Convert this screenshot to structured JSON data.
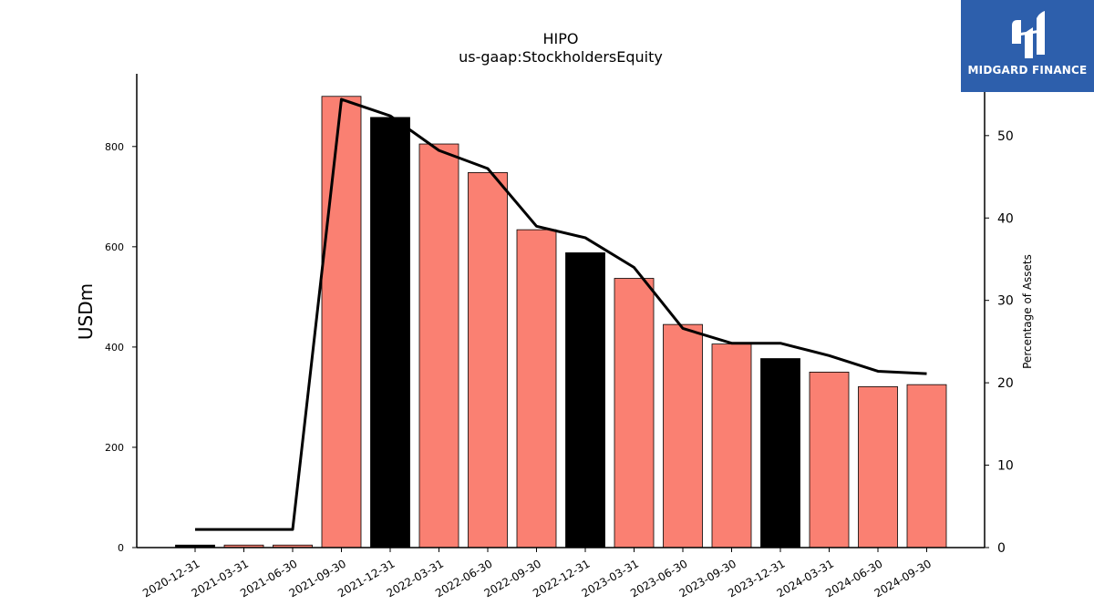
{
  "chart_data": {
    "type": "bar",
    "title": "HIPO",
    "subtitle": "us-gaap:StockholdersEquity",
    "ylabel": "USDm",
    "y2label": "Percentage of Assets",
    "ylim": [
      0,
      945
    ],
    "y2lim": [
      0,
      57.5
    ],
    "yticks": [
      0,
      200,
      400,
      600,
      800
    ],
    "y2ticks": [
      0,
      10,
      20,
      30,
      40,
      50
    ],
    "grid": false,
    "categories": [
      "2020-12-31",
      "2021-03-31",
      "2021-06-30",
      "2021-09-30",
      "2021-12-31",
      "2022-03-31",
      "2022-06-30",
      "2022-09-30",
      "2022-12-31",
      "2023-03-31",
      "2023-06-30",
      "2023-09-30",
      "2023-12-31",
      "2024-03-31",
      "2024-06-30",
      "2024-09-30"
    ],
    "series": [
      {
        "type": "bar",
        "axis": "left",
        "values": [
          5,
          5,
          5,
          900,
          858,
          805,
          748,
          634,
          588,
          537,
          445,
          406,
          377,
          350,
          321,
          325
        ],
        "colors": [
          "#000000",
          "#fa8072",
          "#fa8072",
          "#fa8072",
          "#000000",
          "#fa8072",
          "#fa8072",
          "#fa8072",
          "#000000",
          "#fa8072",
          "#fa8072",
          "#fa8072",
          "#000000",
          "#fa8072",
          "#fa8072",
          "#fa8072"
        ]
      },
      {
        "type": "line",
        "axis": "right",
        "color": "#000000",
        "values": [
          2.2,
          2.2,
          2.2,
          54.4,
          52.4,
          48.2,
          46.0,
          39.0,
          37.6,
          34.0,
          26.6,
          24.8,
          24.8,
          23.3,
          21.4,
          21.1
        ]
      }
    ]
  },
  "logo": {
    "text": "MIDGARD FINANCE"
  }
}
